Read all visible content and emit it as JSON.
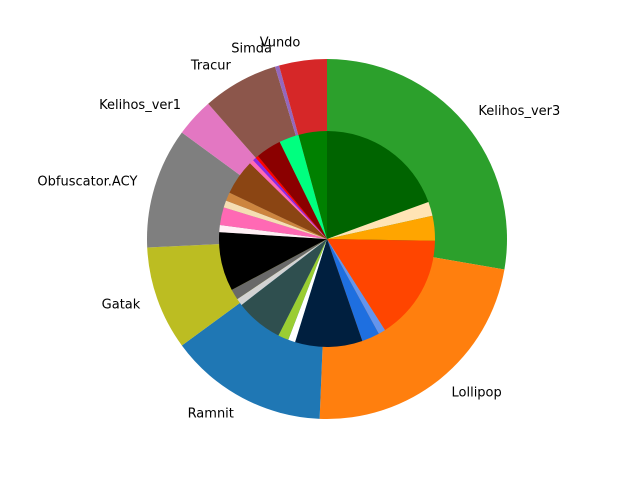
{
  "chart_data": {
    "type": "pie",
    "title": "",
    "start_angle_deg": 90,
    "direction": "clockwise",
    "outer_ring": {
      "wedges": [
        {
          "label": "Kelihos_ver3",
          "value": 29.7,
          "color": "#2ca02c"
        },
        {
          "label": "Lollipop",
          "value": 24.6,
          "color": "#ff7f0e"
        },
        {
          "label": "Ramnit",
          "value": 15.3,
          "color": "#1f77b4"
        },
        {
          "label": "Gatak",
          "value": 10.0,
          "color": "#bcbd22"
        },
        {
          "label": "Obfuscator.ACY",
          "value": 11.6,
          "color": "#7f7f7f"
        },
        {
          "label": "Kelihos_ver1",
          "value": 3.7,
          "color": "#e377c2"
        },
        {
          "label": "Tracur",
          "value": 7.3,
          "color": "#8c564b"
        },
        {
          "label": "Simda",
          "value": 0.4,
          "color": "#9467bd"
        },
        {
          "label": "Vundo",
          "value": 4.6,
          "color": "#d62728"
        }
      ]
    },
    "inner_ring": {
      "wedges": [
        {
          "value": 18.3,
          "color": "#006400"
        },
        {
          "value": 2.0,
          "color": "#ffe4b5"
        },
        {
          "value": 3.5,
          "color": "#ffa500"
        },
        {
          "value": 14.8,
          "color": "#ff4500"
        },
        {
          "value": 1.0,
          "color": "#6495ed"
        },
        {
          "value": 2.5,
          "color": "#1e6fe0"
        },
        {
          "value": 9.5,
          "color": "#001f3f"
        },
        {
          "value": 1.0,
          "color": "#ffffff"
        },
        {
          "value": 1.5,
          "color": "#9acd32"
        },
        {
          "value": 6.7,
          "color": "#2f4f4f"
        },
        {
          "value": 1.0,
          "color": "#d3d3d3"
        },
        {
          "value": 1.5,
          "color": "#696969"
        },
        {
          "value": 8.3,
          "color": "#000000"
        },
        {
          "value": 1.0,
          "color": "#fff0f5"
        },
        {
          "value": 2.5,
          "color": "#ff69b4"
        },
        {
          "value": 1.0,
          "color": "#f5deb3"
        },
        {
          "value": 1.2,
          "color": "#cd853f"
        },
        {
          "value": 5.0,
          "color": "#8b4513"
        },
        {
          "value": 0.6,
          "color": "#ff69b4"
        },
        {
          "value": 0.5,
          "color": "#8a2be2"
        },
        {
          "value": 0.4,
          "color": "#ff0000"
        },
        {
          "value": 3.6,
          "color": "#8b0000"
        },
        {
          "value": 2.8,
          "color": "#00ff7f"
        },
        {
          "value": 4.0,
          "color": "#008000"
        }
      ]
    }
  }
}
